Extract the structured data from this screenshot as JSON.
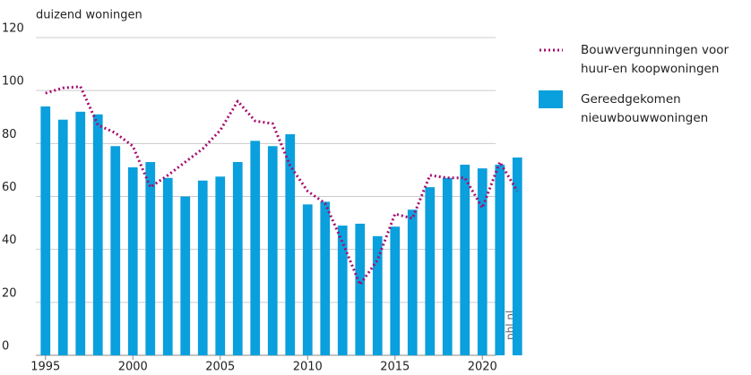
{
  "chart_data": {
    "type": "bar-line",
    "y_axis_label": "duizend woningen",
    "source": "pbl.nl",
    "x": [
      1995,
      1996,
      1997,
      1998,
      1999,
      2000,
      2001,
      2002,
      2003,
      2004,
      2005,
      2006,
      2007,
      2008,
      2009,
      2010,
      2011,
      2012,
      2013,
      2014,
      2015,
      2016,
      2017,
      2018,
      2019,
      2020,
      2021,
      2022
    ],
    "series": [
      {
        "name": "Bouwvergunningen voor huur-en koopwoningen",
        "kind": "line",
        "color": "#a50d6e",
        "values": [
          99,
          101,
          101.5,
          87,
          84,
          79,
          63.5,
          68,
          73,
          78,
          85,
          96,
          88.5,
          87.5,
          71.6,
          62,
          57.4,
          42.6,
          26.7,
          36,
          53.4,
          51.7,
          68,
          67,
          67,
          55.7,
          73,
          62
        ]
      },
      {
        "name": "Gereedgekomen nieuwbouwwoningen",
        "kind": "bar",
        "color": "#0a9fdd",
        "values": [
          94,
          89,
          92,
          91,
          79,
          71,
          73,
          67,
          60,
          66,
          67.5,
          73,
          81,
          79,
          83.5,
          57,
          58,
          49,
          49.7,
          45,
          48.6,
          55,
          63.5,
          67,
          72,
          70.6,
          72,
          74.7
        ]
      }
    ],
    "xlim": [
      1994.5,
      2022.5
    ],
    "xticks": [
      1995,
      2000,
      2005,
      2010,
      2015,
      2020
    ],
    "ylim": [
      0,
      120
    ],
    "yticks": [
      0,
      20,
      40,
      60,
      80,
      100,
      120
    ],
    "grid": true
  }
}
